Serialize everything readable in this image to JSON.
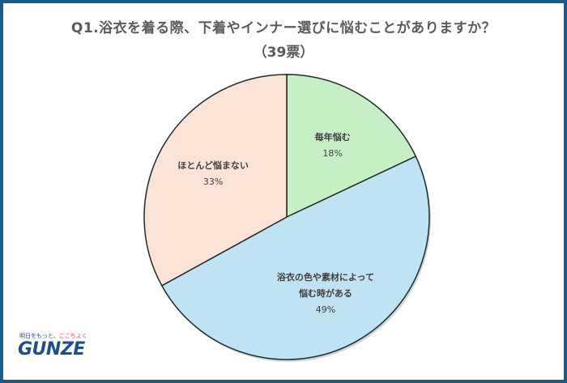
{
  "chart_data": {
    "type": "pie",
    "title": "Q1.浴衣を着る際、下着やインナー選びに悩むことがありますか？",
    "subtitle": "（39票）",
    "slices": [
      {
        "label_lines": [
          "毎年悩む"
        ],
        "value": 18,
        "value_label": "18%",
        "color": "#c6efc5"
      },
      {
        "label_lines": [
          "浴衣の色や素材によって",
          "悩む時がある"
        ],
        "value": 49,
        "value_label": "49%",
        "color": "#c0e3f4"
      },
      {
        "label_lines": [
          "ほとんど悩まない"
        ],
        "value": 33,
        "value_label": "33%",
        "color": "#fbe3d8"
      }
    ]
  },
  "logo": {
    "tagline_pre": "明日をもっと、",
    "tagline_accent": "ここちよく",
    "wordmark": "GUNZE"
  },
  "colors": {
    "frame": "#1f5a86",
    "slice_border": "#1e2a2a",
    "text": "#404040"
  }
}
